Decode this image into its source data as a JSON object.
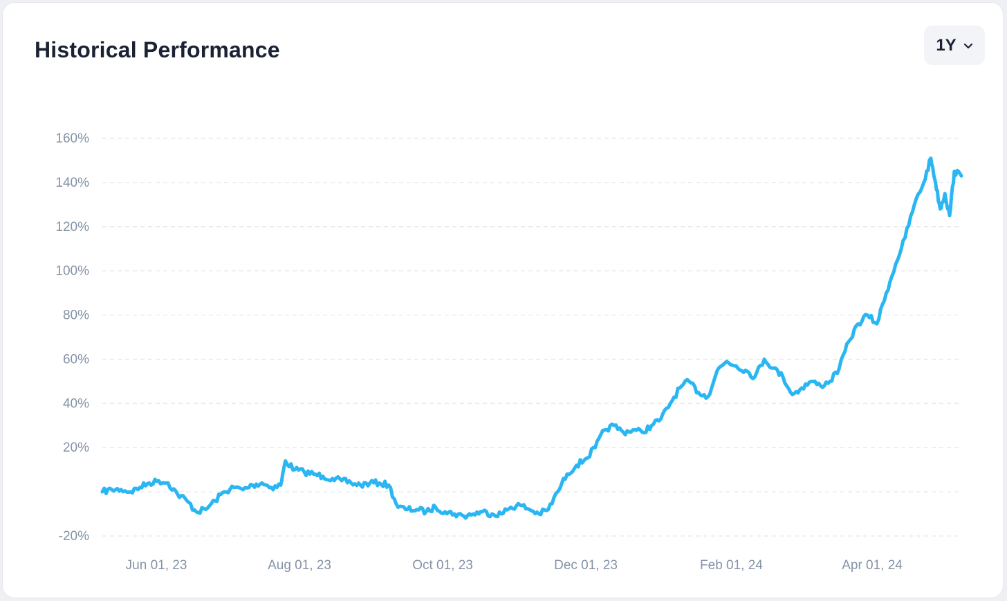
{
  "header": {
    "title": "Historical Performance",
    "range_selector": {
      "selected": "1Y",
      "icon": "chevron-down-icon"
    }
  },
  "colors": {
    "line": "#2ab6f2",
    "grid": "#e2e6ec",
    "tick_text": "#8492a6",
    "title": "#1a2233"
  },
  "chart_data": {
    "type": "line",
    "title": "",
    "xlabel": "",
    "ylabel": "",
    "x_range": [
      "2023-05-09",
      "2024-05-09"
    ],
    "ylim": [
      -20,
      160
    ],
    "y_ticks": [
      -20,
      0,
      20,
      40,
      60,
      80,
      100,
      120,
      140,
      160
    ],
    "y_tick_labels": [
      "-20%",
      "",
      "20%",
      "40%",
      "60%",
      "80%",
      "100%",
      "120%",
      "140%",
      "160%"
    ],
    "x_ticks": [
      {
        "date": "2023-06-01",
        "label": "Jun 01, 23"
      },
      {
        "date": "2023-08-01",
        "label": "Aug 01, 23"
      },
      {
        "date": "2023-10-01",
        "label": "Oct 01, 23"
      },
      {
        "date": "2023-12-01",
        "label": "Dec 01, 23"
      },
      {
        "date": "2024-02-01",
        "label": "Feb 01, 24"
      },
      {
        "date": "2024-04-01",
        "label": "Apr 01, 24"
      }
    ],
    "grid": "horizontal-dashed",
    "legend": "none",
    "series": [
      {
        "points": [
          [
            "2023-05-09",
            0
          ],
          [
            "2023-05-13",
            1
          ],
          [
            "2023-05-17",
            1
          ],
          [
            "2023-05-21",
            0
          ],
          [
            "2023-05-25",
            2
          ],
          [
            "2023-05-29",
            4
          ],
          [
            "2023-06-02",
            5
          ],
          [
            "2023-06-06",
            4
          ],
          [
            "2023-06-10",
            -1
          ],
          [
            "2023-06-14",
            -4
          ],
          [
            "2023-06-18",
            -9
          ],
          [
            "2023-06-22",
            -8
          ],
          [
            "2023-06-26",
            -4
          ],
          [
            "2023-06-30",
            0
          ],
          [
            "2023-07-04",
            2
          ],
          [
            "2023-07-08",
            1
          ],
          [
            "2023-07-12",
            3
          ],
          [
            "2023-07-16",
            4
          ],
          [
            "2023-07-20",
            2
          ],
          [
            "2023-07-24",
            3
          ],
          [
            "2023-07-26",
            14
          ],
          [
            "2023-07-30",
            10
          ],
          [
            "2023-08-03",
            9
          ],
          [
            "2023-08-07",
            8
          ],
          [
            "2023-08-11",
            7
          ],
          [
            "2023-08-15",
            6
          ],
          [
            "2023-08-19",
            5
          ],
          [
            "2023-08-23",
            4
          ],
          [
            "2023-08-27",
            3
          ],
          [
            "2023-08-31",
            4
          ],
          [
            "2023-09-04",
            4
          ],
          [
            "2023-09-08",
            3
          ],
          [
            "2023-09-12",
            -7
          ],
          [
            "2023-09-16",
            -8
          ],
          [
            "2023-09-20",
            -8
          ],
          [
            "2023-09-24",
            -9
          ],
          [
            "2023-09-28",
            -7
          ],
          [
            "2023-10-02",
            -9
          ],
          [
            "2023-10-06",
            -10
          ],
          [
            "2023-10-10",
            -11
          ],
          [
            "2023-10-14",
            -10
          ],
          [
            "2023-10-18",
            -9
          ],
          [
            "2023-10-22",
            -10
          ],
          [
            "2023-10-26",
            -10
          ],
          [
            "2023-10-30",
            -7
          ],
          [
            "2023-11-03",
            -6
          ],
          [
            "2023-11-07",
            -8
          ],
          [
            "2023-11-11",
            -10
          ],
          [
            "2023-11-15",
            -8
          ],
          [
            "2023-11-19",
            0
          ],
          [
            "2023-11-23",
            8
          ],
          [
            "2023-11-27",
            12
          ],
          [
            "2023-12-01",
            15
          ],
          [
            "2023-12-05",
            20
          ],
          [
            "2023-12-09",
            28
          ],
          [
            "2023-12-13",
            30
          ],
          [
            "2023-12-17",
            27
          ],
          [
            "2023-12-21",
            28
          ],
          [
            "2023-12-25",
            27
          ],
          [
            "2023-12-29",
            30
          ],
          [
            "2024-01-02",
            33
          ],
          [
            "2024-01-06",
            40
          ],
          [
            "2024-01-10",
            47
          ],
          [
            "2024-01-14",
            50
          ],
          [
            "2024-01-18",
            45
          ],
          [
            "2024-01-22",
            43
          ],
          [
            "2024-01-26",
            55
          ],
          [
            "2024-01-30",
            59
          ],
          [
            "2024-02-03",
            57
          ],
          [
            "2024-02-07",
            55
          ],
          [
            "2024-02-11",
            52
          ],
          [
            "2024-02-15",
            60
          ],
          [
            "2024-02-19",
            56
          ],
          [
            "2024-02-23",
            52
          ],
          [
            "2024-02-27",
            44
          ],
          [
            "2024-03-02",
            47
          ],
          [
            "2024-03-06",
            50
          ],
          [
            "2024-03-10",
            48
          ],
          [
            "2024-03-14",
            50
          ],
          [
            "2024-03-18",
            56
          ],
          [
            "2024-03-22",
            68
          ],
          [
            "2024-03-26",
            76
          ],
          [
            "2024-03-30",
            80
          ],
          [
            "2024-04-03",
            76
          ],
          [
            "2024-04-07",
            90
          ],
          [
            "2024-04-11",
            103
          ],
          [
            "2024-04-15",
            115
          ],
          [
            "2024-04-19",
            130
          ],
          [
            "2024-04-23",
            140
          ],
          [
            "2024-04-26",
            151
          ],
          [
            "2024-04-28",
            140
          ],
          [
            "2024-04-30",
            128
          ],
          [
            "2024-05-02",
            135
          ],
          [
            "2024-05-04",
            125
          ],
          [
            "2024-05-06",
            145
          ],
          [
            "2024-05-09",
            143
          ]
        ]
      }
    ]
  }
}
